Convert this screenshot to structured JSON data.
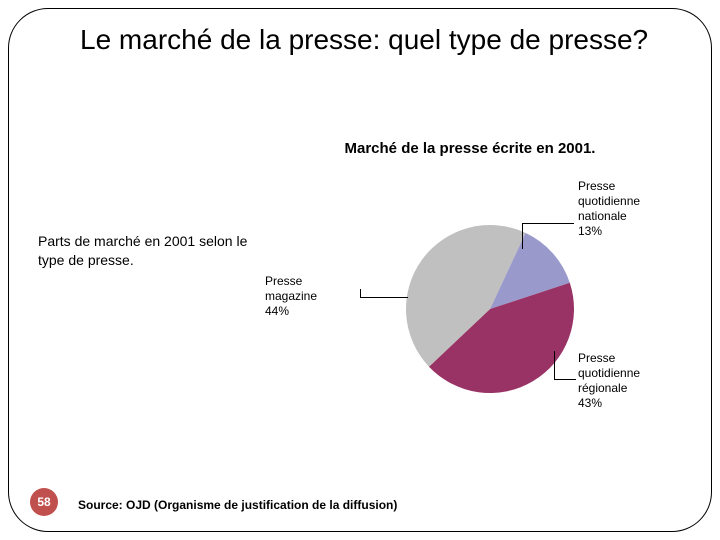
{
  "slide": {
    "title": "Le marché de la presse: quel type de presse?",
    "left_caption": "Parts de marché en 2001 selon le type de presse.",
    "page_number": "58",
    "page_badge_color": "#c0504d",
    "source": "Source: OJD (Organisme de justification de la diffusion)"
  },
  "chart": {
    "type": "pie",
    "title": "Marché de la presse écrite en 2001.",
    "title_fontsize": 15,
    "title_fontweight": "bold",
    "label_fontsize": 12,
    "slices": [
      {
        "label_line1": "Presse",
        "label_line2": "quotidienne",
        "label_line3": "nationale",
        "pct_text": "13%",
        "value": 13,
        "color": "#9999cc"
      },
      {
        "label_line1": "Presse",
        "label_line2": "quotidienne",
        "label_line3": "régionale",
        "pct_text": "43%",
        "value": 43,
        "color": "#993366"
      },
      {
        "label_line1": "Presse",
        "label_line2": "magazine",
        "label_line3": "",
        "pct_text": "44%",
        "value": 44,
        "color": "#c0c0c0"
      }
    ],
    "background_color": "#ffffff",
    "leader_color": "#000000",
    "start_angle_deg": -65
  }
}
